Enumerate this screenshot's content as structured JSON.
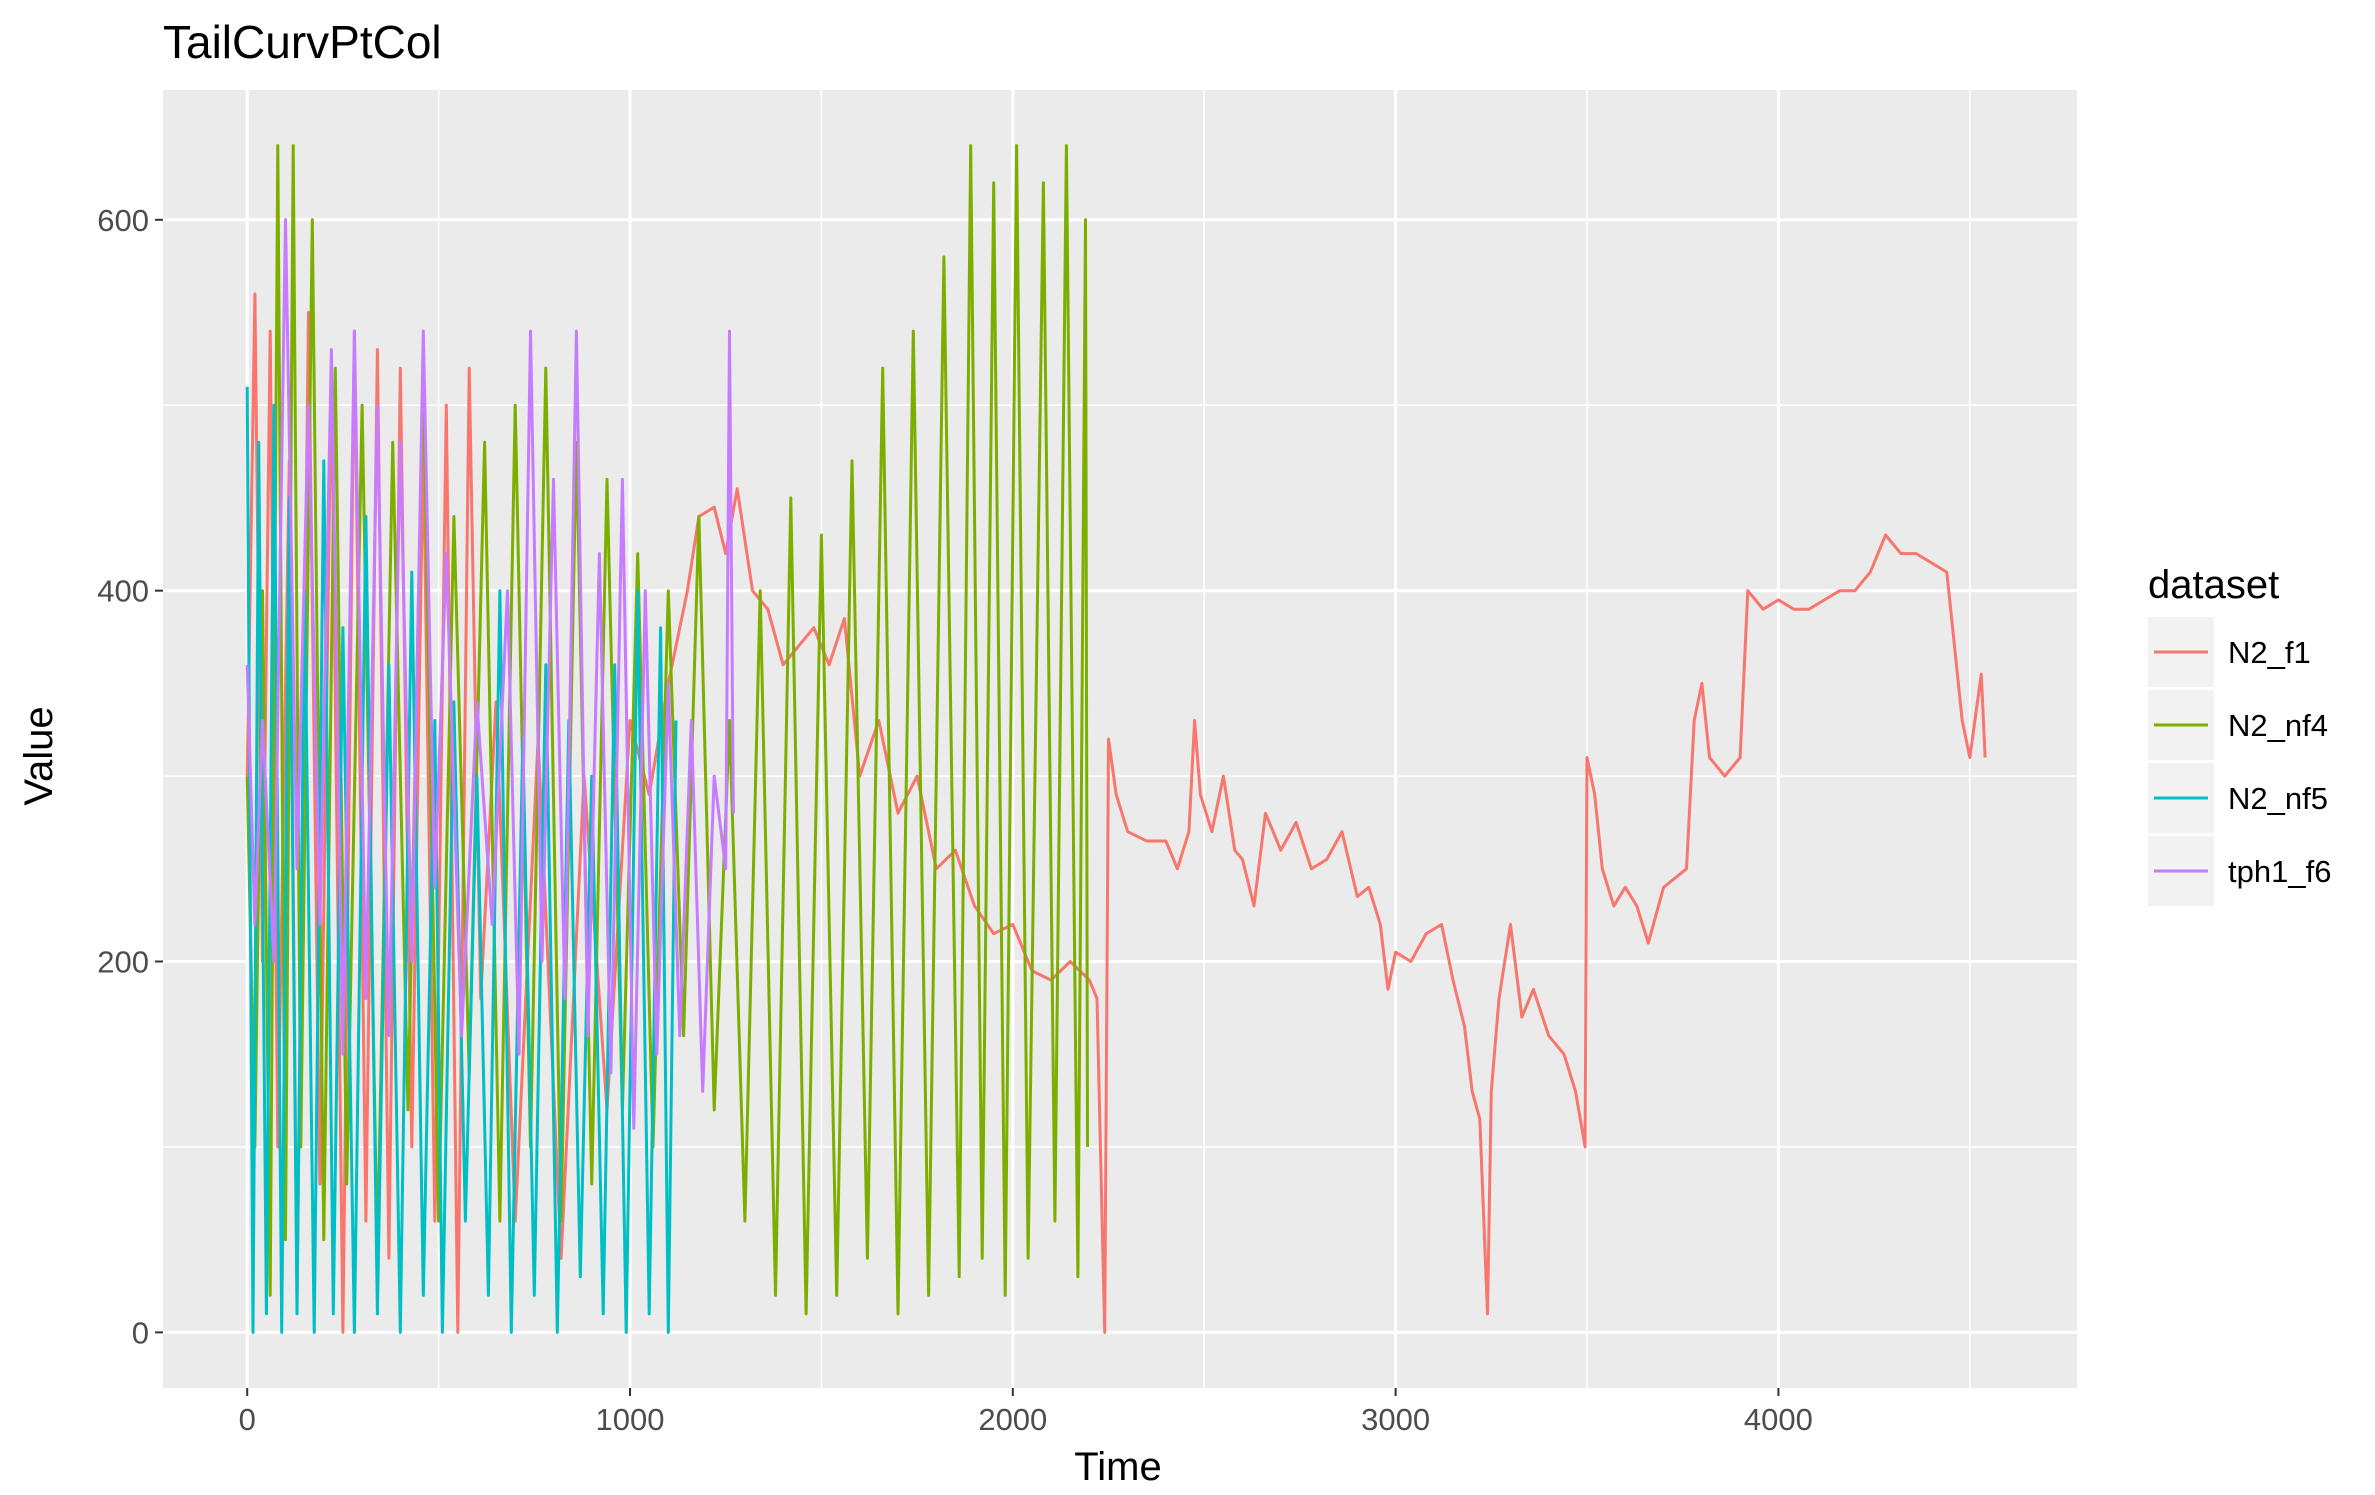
{
  "chart_data": {
    "type": "line",
    "title": "TailCurvPtCol",
    "xlabel": "Time",
    "ylabel": "Value",
    "xlim": [
      -220,
      4780
    ],
    "ylim": [
      -30,
      670
    ],
    "x_ticks": [
      0,
      1000,
      2000,
      3000,
      4000
    ],
    "x_tick_labels": [
      "0",
      "1000",
      "2000",
      "3000",
      "4000"
    ],
    "y_ticks": [
      0,
      200,
      400,
      600
    ],
    "y_tick_labels": [
      "0",
      "200",
      "400",
      "600"
    ],
    "grid": true,
    "legend": {
      "title": "dataset",
      "position": "right"
    },
    "series": [
      {
        "name": "N2_f1",
        "color": "#F8766D",
        "points": [
          [
            0,
            300
          ],
          [
            20,
            560
          ],
          [
            40,
            200
          ],
          [
            60,
            540
          ],
          [
            80,
            100
          ],
          [
            110,
            470
          ],
          [
            130,
            20
          ],
          [
            160,
            550
          ],
          [
            190,
            80
          ],
          [
            220,
            520
          ],
          [
            250,
            0
          ],
          [
            280,
            540
          ],
          [
            310,
            60
          ],
          [
            340,
            530
          ],
          [
            370,
            40
          ],
          [
            400,
            520
          ],
          [
            430,
            100
          ],
          [
            460,
            480
          ],
          [
            490,
            60
          ],
          [
            520,
            500
          ],
          [
            550,
            0
          ],
          [
            580,
            520
          ],
          [
            610,
            180
          ],
          [
            650,
            340
          ],
          [
            700,
            60
          ],
          [
            760,
            320
          ],
          [
            820,
            40
          ],
          [
            880,
            300
          ],
          [
            940,
            120
          ],
          [
            1000,
            330
          ],
          [
            1050,
            290
          ],
          [
            1100,
            350
          ],
          [
            1150,
            400
          ],
          [
            1180,
            440
          ],
          [
            1220,
            445
          ],
          [
            1250,
            420
          ],
          [
            1280,
            455
          ],
          [
            1320,
            400
          ],
          [
            1360,
            390
          ],
          [
            1400,
            360
          ],
          [
            1440,
            370
          ],
          [
            1480,
            380
          ],
          [
            1520,
            360
          ],
          [
            1560,
            385
          ],
          [
            1600,
            300
          ],
          [
            1650,
            330
          ],
          [
            1700,
            280
          ],
          [
            1750,
            300
          ],
          [
            1800,
            250
          ],
          [
            1850,
            260
          ],
          [
            1900,
            230
          ],
          [
            1950,
            215
          ],
          [
            2000,
            220
          ],
          [
            2050,
            195
          ],
          [
            2100,
            190
          ],
          [
            2150,
            200
          ],
          [
            2200,
            190
          ],
          [
            2220,
            180
          ],
          [
            2240,
            0
          ],
          [
            2250,
            320
          ],
          [
            2270,
            290
          ],
          [
            2300,
            270
          ],
          [
            2350,
            265
          ],
          [
            2400,
            265
          ],
          [
            2430,
            250
          ],
          [
            2460,
            270
          ],
          [
            2475,
            330
          ],
          [
            2490,
            290
          ],
          [
            2520,
            270
          ],
          [
            2550,
            300
          ],
          [
            2580,
            260
          ],
          [
            2600,
            255
          ],
          [
            2630,
            230
          ],
          [
            2660,
            280
          ],
          [
            2700,
            260
          ],
          [
            2740,
            275
          ],
          [
            2780,
            250
          ],
          [
            2820,
            255
          ],
          [
            2860,
            270
          ],
          [
            2900,
            235
          ],
          [
            2930,
            240
          ],
          [
            2960,
            220
          ],
          [
            2980,
            185
          ],
          [
            3000,
            205
          ],
          [
            3040,
            200
          ],
          [
            3080,
            215
          ],
          [
            3120,
            220
          ],
          [
            3150,
            190
          ],
          [
            3180,
            165
          ],
          [
            3200,
            130
          ],
          [
            3220,
            115
          ],
          [
            3240,
            10
          ],
          [
            3250,
            130
          ],
          [
            3270,
            180
          ],
          [
            3300,
            220
          ],
          [
            3330,
            170
          ],
          [
            3360,
            185
          ],
          [
            3400,
            160
          ],
          [
            3440,
            150
          ],
          [
            3470,
            130
          ],
          [
            3495,
            100
          ],
          [
            3500,
            310
          ],
          [
            3520,
            290
          ],
          [
            3540,
            250
          ],
          [
            3570,
            230
          ],
          [
            3600,
            240
          ],
          [
            3630,
            230
          ],
          [
            3660,
            210
          ],
          [
            3700,
            240
          ],
          [
            3730,
            245
          ],
          [
            3760,
            250
          ],
          [
            3780,
            330
          ],
          [
            3800,
            350
          ],
          [
            3820,
            310
          ],
          [
            3860,
            300
          ],
          [
            3900,
            310
          ],
          [
            3920,
            400
          ],
          [
            3960,
            390
          ],
          [
            4000,
            395
          ],
          [
            4040,
            390
          ],
          [
            4080,
            390
          ],
          [
            4120,
            395
          ],
          [
            4160,
            400
          ],
          [
            4200,
            400
          ],
          [
            4240,
            410
          ],
          [
            4280,
            430
          ],
          [
            4320,
            420
          ],
          [
            4360,
            420
          ],
          [
            4400,
            415
          ],
          [
            4440,
            410
          ],
          [
            4480,
            330
          ],
          [
            4500,
            310
          ],
          [
            4530,
            355
          ],
          [
            4540,
            310
          ]
        ]
      },
      {
        "name": "N2_nf4",
        "color": "#7CAE00",
        "points": [
          [
            0,
            300
          ],
          [
            20,
            100
          ],
          [
            40,
            400
          ],
          [
            60,
            20
          ],
          [
            80,
            640
          ],
          [
            100,
            50
          ],
          [
            120,
            640
          ],
          [
            140,
            100
          ],
          [
            170,
            600
          ],
          [
            200,
            50
          ],
          [
            230,
            520
          ],
          [
            260,
            80
          ],
          [
            300,
            500
          ],
          [
            340,
            40
          ],
          [
            380,
            480
          ],
          [
            420,
            120
          ],
          [
            460,
            520
          ],
          [
            500,
            60
          ],
          [
            540,
            440
          ],
          [
            580,
            140
          ],
          [
            620,
            480
          ],
          [
            660,
            60
          ],
          [
            700,
            500
          ],
          [
            740,
            100
          ],
          [
            780,
            520
          ],
          [
            820,
            60
          ],
          [
            860,
            480
          ],
          [
            900,
            80
          ],
          [
            940,
            460
          ],
          [
            980,
            120
          ],
          [
            1020,
            420
          ],
          [
            1060,
            100
          ],
          [
            1100,
            400
          ],
          [
            1140,
            160
          ],
          [
            1180,
            440
          ],
          [
            1220,
            120
          ],
          [
            1260,
            330
          ],
          [
            1300,
            60
          ],
          [
            1340,
            400
          ],
          [
            1380,
            20
          ],
          [
            1420,
            450
          ],
          [
            1460,
            10
          ],
          [
            1500,
            430
          ],
          [
            1540,
            20
          ],
          [
            1580,
            470
          ],
          [
            1620,
            40
          ],
          [
            1660,
            520
          ],
          [
            1700,
            10
          ],
          [
            1740,
            540
          ],
          [
            1780,
            20
          ],
          [
            1820,
            580
          ],
          [
            1860,
            30
          ],
          [
            1890,
            640
          ],
          [
            1920,
            40
          ],
          [
            1950,
            620
          ],
          [
            1980,
            20
          ],
          [
            2010,
            640
          ],
          [
            2040,
            40
          ],
          [
            2080,
            620
          ],
          [
            2110,
            60
          ],
          [
            2140,
            640
          ],
          [
            2170,
            30
          ],
          [
            2190,
            600
          ],
          [
            2195,
            100
          ]
        ]
      },
      {
        "name": "N2_nf5",
        "color": "#00BFC4",
        "points": [
          [
            0,
            510
          ],
          [
            15,
            0
          ],
          [
            30,
            480
          ],
          [
            50,
            10
          ],
          [
            70,
            500
          ],
          [
            90,
            0
          ],
          [
            110,
            450
          ],
          [
            130,
            10
          ],
          [
            150,
            400
          ],
          [
            175,
            0
          ],
          [
            200,
            470
          ],
          [
            225,
            10
          ],
          [
            250,
            380
          ],
          [
            280,
            0
          ],
          [
            310,
            440
          ],
          [
            340,
            10
          ],
          [
            370,
            360
          ],
          [
            400,
            0
          ],
          [
            430,
            410
          ],
          [
            460,
            20
          ],
          [
            490,
            330
          ],
          [
            510,
            0
          ],
          [
            540,
            340
          ],
          [
            570,
            60
          ],
          [
            600,
            300
          ],
          [
            630,
            20
          ],
          [
            660,
            400
          ],
          [
            690,
            0
          ],
          [
            720,
            320
          ],
          [
            750,
            20
          ],
          [
            780,
            360
          ],
          [
            810,
            0
          ],
          [
            840,
            330
          ],
          [
            870,
            30
          ],
          [
            900,
            300
          ],
          [
            930,
            10
          ],
          [
            960,
            360
          ],
          [
            990,
            0
          ],
          [
            1020,
            400
          ],
          [
            1050,
            10
          ],
          [
            1080,
            380
          ],
          [
            1100,
            0
          ],
          [
            1120,
            330
          ]
        ]
      },
      {
        "name": "tph1_f6",
        "color": "#C77CFF",
        "points": [
          [
            0,
            360
          ],
          [
            20,
            220
          ],
          [
            40,
            330
          ],
          [
            70,
            200
          ],
          [
            100,
            600
          ],
          [
            130,
            250
          ],
          [
            160,
            500
          ],
          [
            190,
            220
          ],
          [
            220,
            530
          ],
          [
            250,
            150
          ],
          [
            280,
            540
          ],
          [
            310,
            180
          ],
          [
            340,
            500
          ],
          [
            370,
            160
          ],
          [
            400,
            480
          ],
          [
            430,
            200
          ],
          [
            460,
            540
          ],
          [
            490,
            240
          ],
          [
            520,
            420
          ],
          [
            560,
            160
          ],
          [
            600,
            340
          ],
          [
            640,
            220
          ],
          [
            680,
            400
          ],
          [
            710,
            150
          ],
          [
            740,
            540
          ],
          [
            770,
            200
          ],
          [
            800,
            460
          ],
          [
            830,
            180
          ],
          [
            860,
            540
          ],
          [
            890,
            160
          ],
          [
            920,
            420
          ],
          [
            950,
            140
          ],
          [
            980,
            460
          ],
          [
            1010,
            110
          ],
          [
            1040,
            400
          ],
          [
            1070,
            150
          ],
          [
            1100,
            350
          ],
          [
            1130,
            160
          ],
          [
            1160,
            330
          ],
          [
            1190,
            130
          ],
          [
            1220,
            300
          ],
          [
            1250,
            250
          ],
          [
            1260,
            540
          ],
          [
            1270,
            280
          ]
        ]
      }
    ]
  }
}
